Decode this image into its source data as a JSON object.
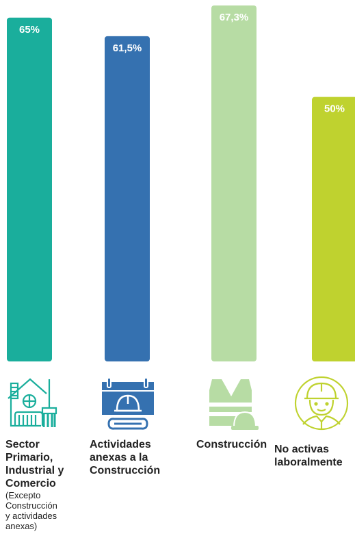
{
  "chart_data": {
    "type": "bar",
    "categories": [
      "Sector\nPrimario,\nIndustrial y\nComercio",
      "Actividades\nanexas a la\nConstrucción",
      "Construcción",
      "No activas\nlaboralmente"
    ],
    "category_notes": [
      "(Excepto\nConstrucción\ny actividades\nanexas)",
      "",
      "",
      ""
    ],
    "values": [
      65,
      61.5,
      67.3,
      50
    ],
    "value_labels": [
      "65%",
      "61,5%",
      "67,3%",
      "50%"
    ],
    "colors": [
      "#1aae9c",
      "#3571b0",
      "#b7dca4",
      "#bfd22f"
    ],
    "ylim": [
      0,
      67.3
    ],
    "grid": false,
    "title": "",
    "xlabel": "",
    "ylabel": ""
  },
  "icons": [
    "house-cleaning-icon",
    "calendar-helmet-wrench-icon",
    "safety-vest-helmet-icon",
    "worker-helmet-icon"
  ]
}
